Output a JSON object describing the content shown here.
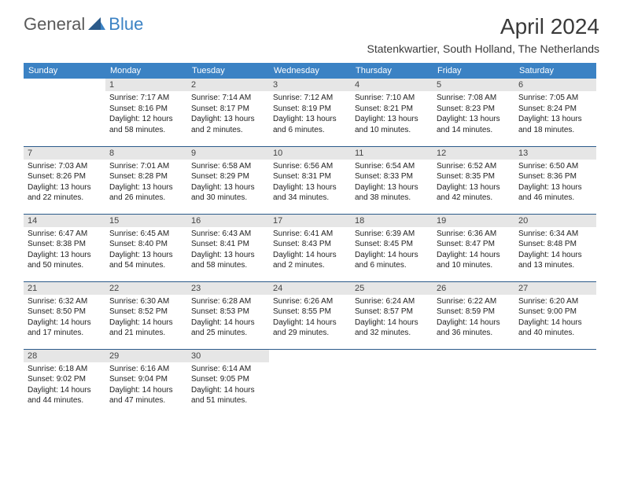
{
  "logo": {
    "general": "General",
    "blue": "Blue"
  },
  "title": "April 2024",
  "location": "Statenkwartier, South Holland, The Netherlands",
  "colors": {
    "header_bg": "#3b82c4",
    "header_text": "#ffffff",
    "daynum_bg": "#e6e6e6",
    "body_text": "#222222",
    "separator": "#2b5a8a",
    "logo_gray": "#5a5a5a",
    "logo_blue": "#3b82c4"
  },
  "dow": [
    "Sunday",
    "Monday",
    "Tuesday",
    "Wednesday",
    "Thursday",
    "Friday",
    "Saturday"
  ],
  "weeks": [
    [
      null,
      {
        "n": "1",
        "sr": "7:17 AM",
        "ss": "8:16 PM",
        "dl": "12 hours and 58 minutes."
      },
      {
        "n": "2",
        "sr": "7:14 AM",
        "ss": "8:17 PM",
        "dl": "13 hours and 2 minutes."
      },
      {
        "n": "3",
        "sr": "7:12 AM",
        "ss": "8:19 PM",
        "dl": "13 hours and 6 minutes."
      },
      {
        "n": "4",
        "sr": "7:10 AM",
        "ss": "8:21 PM",
        "dl": "13 hours and 10 minutes."
      },
      {
        "n": "5",
        "sr": "7:08 AM",
        "ss": "8:23 PM",
        "dl": "13 hours and 14 minutes."
      },
      {
        "n": "6",
        "sr": "7:05 AM",
        "ss": "8:24 PM",
        "dl": "13 hours and 18 minutes."
      }
    ],
    [
      {
        "n": "7",
        "sr": "7:03 AM",
        "ss": "8:26 PM",
        "dl": "13 hours and 22 minutes."
      },
      {
        "n": "8",
        "sr": "7:01 AM",
        "ss": "8:28 PM",
        "dl": "13 hours and 26 minutes."
      },
      {
        "n": "9",
        "sr": "6:58 AM",
        "ss": "8:29 PM",
        "dl": "13 hours and 30 minutes."
      },
      {
        "n": "10",
        "sr": "6:56 AM",
        "ss": "8:31 PM",
        "dl": "13 hours and 34 minutes."
      },
      {
        "n": "11",
        "sr": "6:54 AM",
        "ss": "8:33 PM",
        "dl": "13 hours and 38 minutes."
      },
      {
        "n": "12",
        "sr": "6:52 AM",
        "ss": "8:35 PM",
        "dl": "13 hours and 42 minutes."
      },
      {
        "n": "13",
        "sr": "6:50 AM",
        "ss": "8:36 PM",
        "dl": "13 hours and 46 minutes."
      }
    ],
    [
      {
        "n": "14",
        "sr": "6:47 AM",
        "ss": "8:38 PM",
        "dl": "13 hours and 50 minutes."
      },
      {
        "n": "15",
        "sr": "6:45 AM",
        "ss": "8:40 PM",
        "dl": "13 hours and 54 minutes."
      },
      {
        "n": "16",
        "sr": "6:43 AM",
        "ss": "8:41 PM",
        "dl": "13 hours and 58 minutes."
      },
      {
        "n": "17",
        "sr": "6:41 AM",
        "ss": "8:43 PM",
        "dl": "14 hours and 2 minutes."
      },
      {
        "n": "18",
        "sr": "6:39 AM",
        "ss": "8:45 PM",
        "dl": "14 hours and 6 minutes."
      },
      {
        "n": "19",
        "sr": "6:36 AM",
        "ss": "8:47 PM",
        "dl": "14 hours and 10 minutes."
      },
      {
        "n": "20",
        "sr": "6:34 AM",
        "ss": "8:48 PM",
        "dl": "14 hours and 13 minutes."
      }
    ],
    [
      {
        "n": "21",
        "sr": "6:32 AM",
        "ss": "8:50 PM",
        "dl": "14 hours and 17 minutes."
      },
      {
        "n": "22",
        "sr": "6:30 AM",
        "ss": "8:52 PM",
        "dl": "14 hours and 21 minutes."
      },
      {
        "n": "23",
        "sr": "6:28 AM",
        "ss": "8:53 PM",
        "dl": "14 hours and 25 minutes."
      },
      {
        "n": "24",
        "sr": "6:26 AM",
        "ss": "8:55 PM",
        "dl": "14 hours and 29 minutes."
      },
      {
        "n": "25",
        "sr": "6:24 AM",
        "ss": "8:57 PM",
        "dl": "14 hours and 32 minutes."
      },
      {
        "n": "26",
        "sr": "6:22 AM",
        "ss": "8:59 PM",
        "dl": "14 hours and 36 minutes."
      },
      {
        "n": "27",
        "sr": "6:20 AM",
        "ss": "9:00 PM",
        "dl": "14 hours and 40 minutes."
      }
    ],
    [
      {
        "n": "28",
        "sr": "6:18 AM",
        "ss": "9:02 PM",
        "dl": "14 hours and 44 minutes."
      },
      {
        "n": "29",
        "sr": "6:16 AM",
        "ss": "9:04 PM",
        "dl": "14 hours and 47 minutes."
      },
      {
        "n": "30",
        "sr": "6:14 AM",
        "ss": "9:05 PM",
        "dl": "14 hours and 51 minutes."
      },
      null,
      null,
      null,
      null
    ]
  ],
  "labels": {
    "sunrise": "Sunrise: ",
    "sunset": "Sunset: ",
    "daylight": "Daylight: "
  }
}
